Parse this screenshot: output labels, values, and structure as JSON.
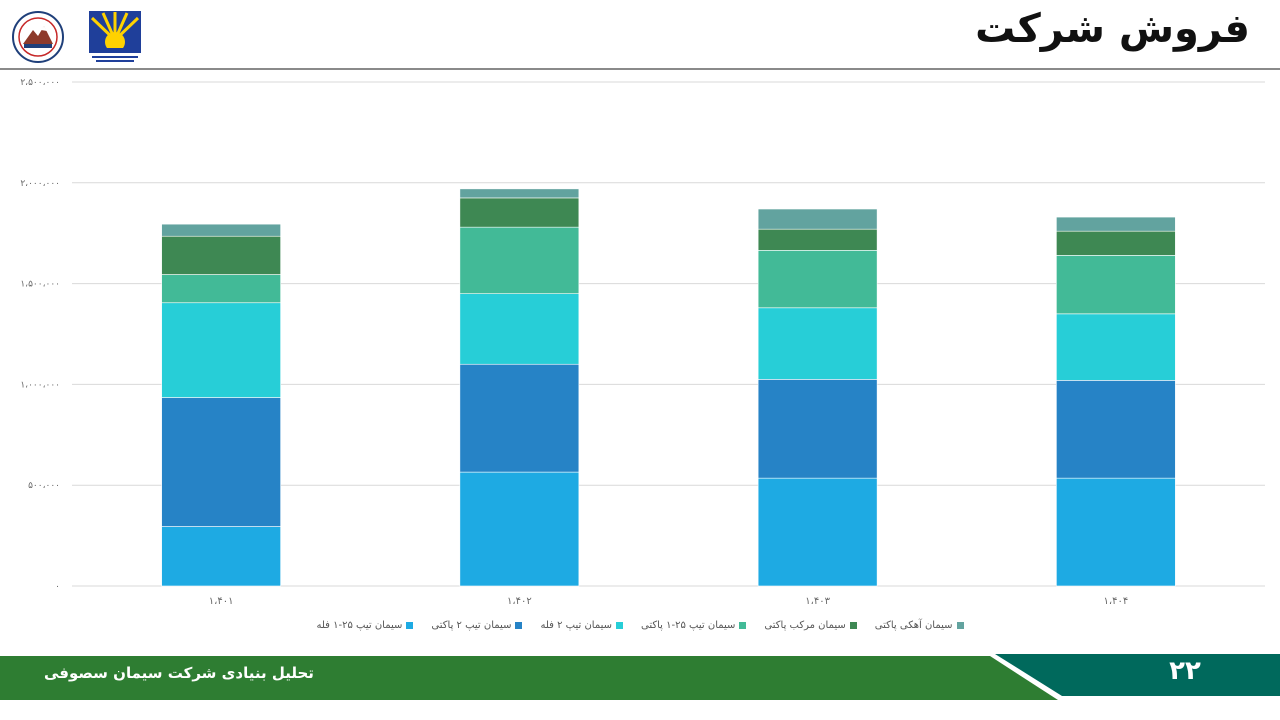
{
  "header": {
    "title": "فروش شرکت"
  },
  "logos": {
    "left_icon": "mountain-seal-icon",
    "right_icon": "sunburst-logo-icon"
  },
  "footer": {
    "text": "تحلیل بنیادی شرکت سیمان سصوفی",
    "page_number": "۲۲"
  },
  "colors": {
    "footer_green": "#2e7d32",
    "footer_teal": "#00695c",
    "grid": "#d9d9d9"
  },
  "chart_data": {
    "type": "bar",
    "stacked": true,
    "categories": [
      "۱،۴۰۱",
      "۱،۴۰۲",
      "۱،۴۰۳",
      "۱،۴۰۴"
    ],
    "ylim": [
      0,
      2500000
    ],
    "yticks": [
      0,
      500000,
      1000000,
      1500000,
      2000000,
      2500000
    ],
    "ytick_labels": [
      "۰",
      "۵۰۰،۰۰۰",
      "۱،۰۰۰،۰۰۰",
      "۱،۵۰۰،۰۰۰",
      "۲،۰۰۰،۰۰۰",
      "۲،۵۰۰،۰۰۰"
    ],
    "grid": true,
    "legend_position": "bottom",
    "series": [
      {
        "name": "سیمان تیپ ۲۵-۱ فله",
        "color": "#1eaae3",
        "values": [
          295000,
          565000,
          535000,
          535000
        ]
      },
      {
        "name": "سیمان تیپ ۲ پاکتی",
        "color": "#2683c6",
        "values": [
          640000,
          535000,
          490000,
          485000
        ]
      },
      {
        "name": "سیمان تیپ ۲ فله",
        "color": "#27ced7",
        "values": [
          470000,
          350000,
          355000,
          330000
        ]
      },
      {
        "name": "سیمان تیپ ۲۵-۱ پاکتی",
        "color": "#42ba97",
        "values": [
          140000,
          330000,
          285000,
          290000
        ]
      },
      {
        "name": "سیمان مرکب پاکتی",
        "color": "#3e8853",
        "values": [
          190000,
          145000,
          105000,
          120000
        ]
      },
      {
        "name": "سیمان آهکی پاکتی",
        "color": "#62a39f",
        "values": [
          60000,
          45000,
          100000,
          70000
        ]
      }
    ]
  }
}
